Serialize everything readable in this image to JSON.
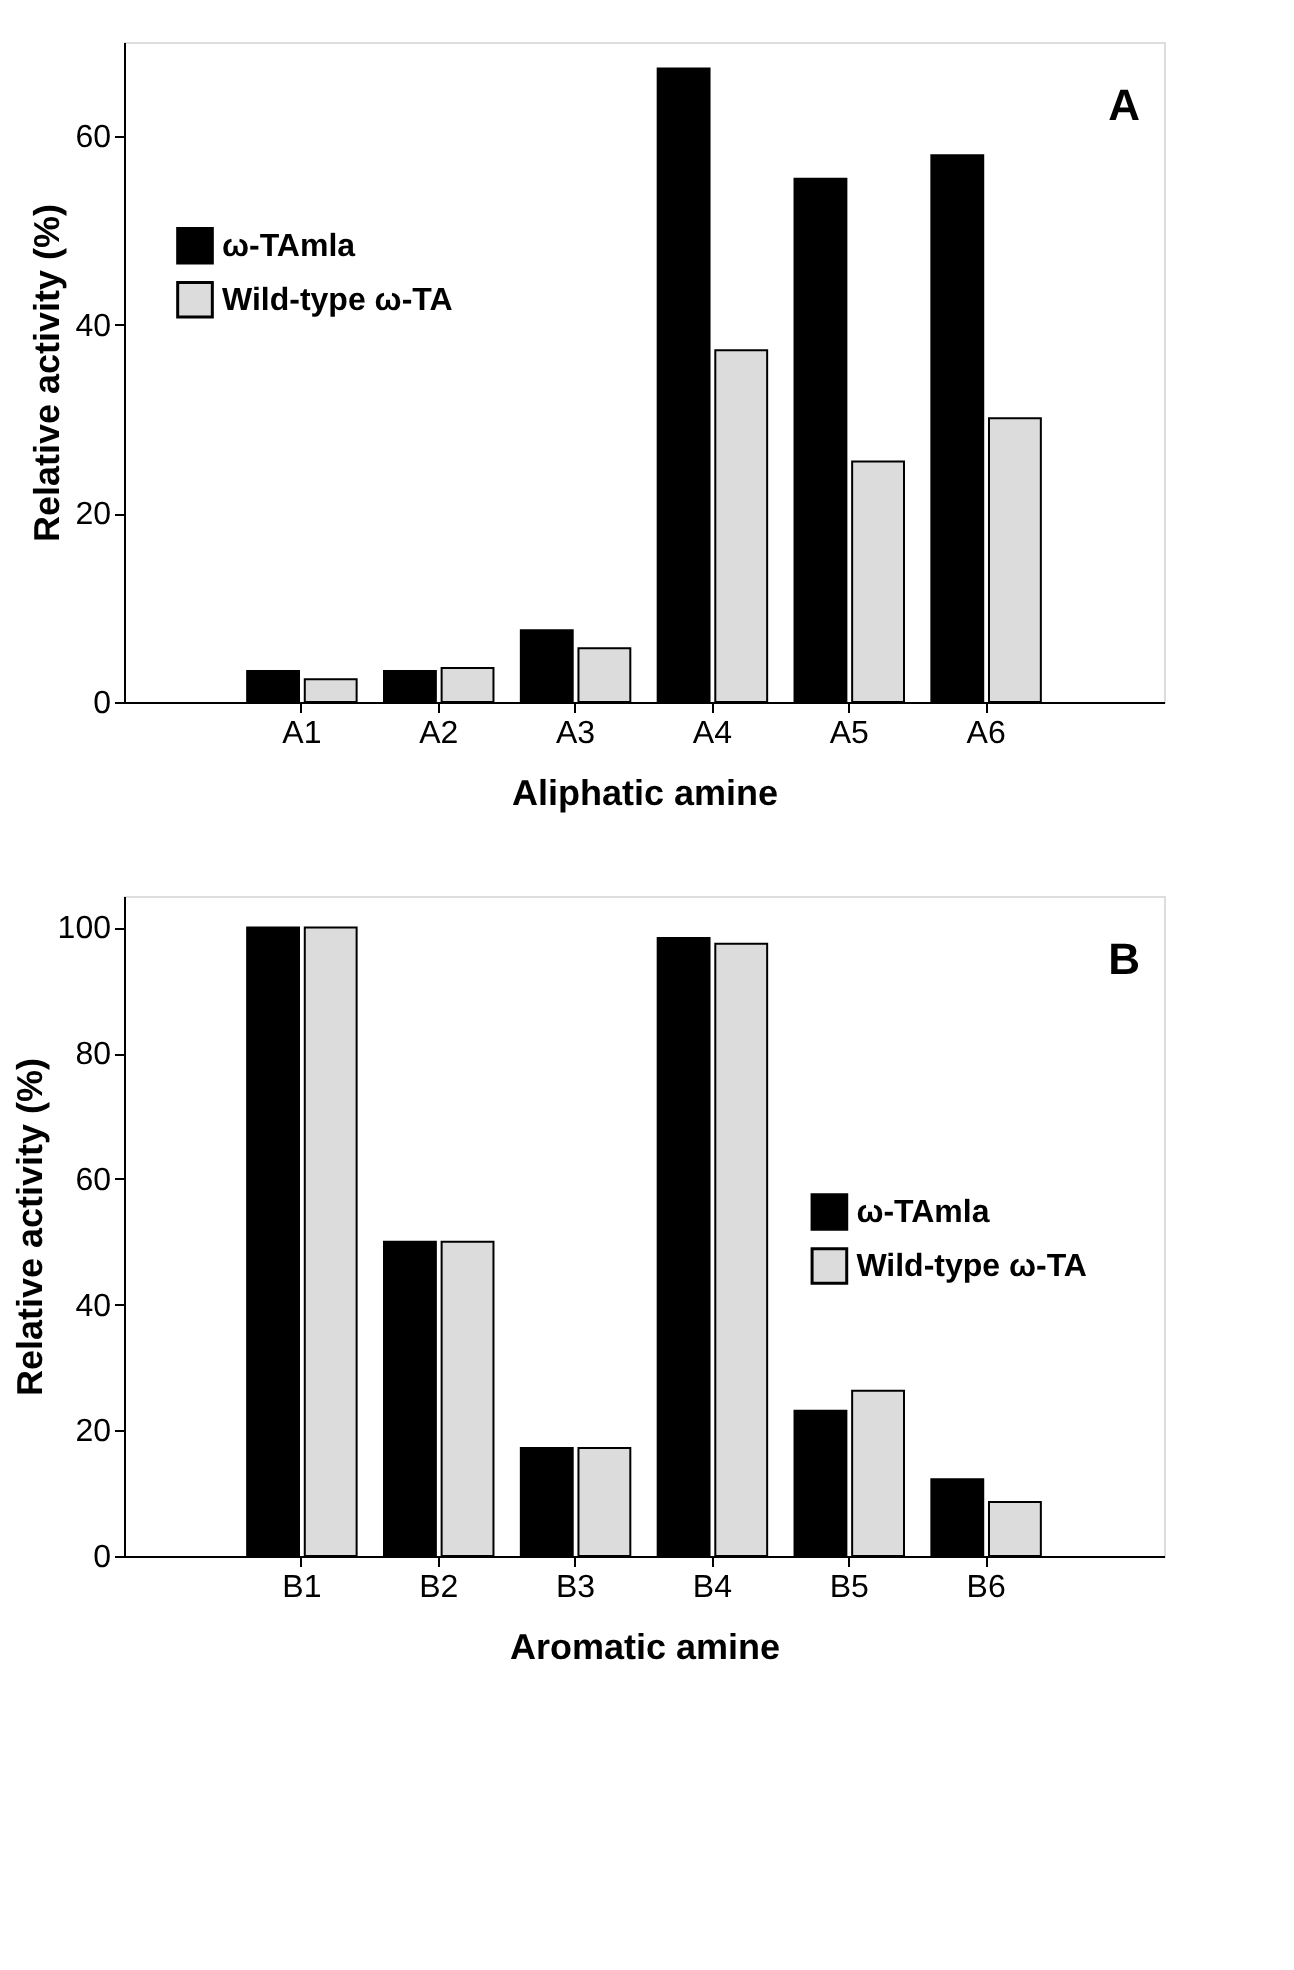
{
  "chart_data": [
    {
      "type": "bar",
      "categories": [
        "A1",
        "A2",
        "A3",
        "A4",
        "A5",
        "A6"
      ],
      "xlabel": "Aliphatic amine",
      "ylabel": "Relative activity (%)",
      "series": [
        {
          "name": "ω-TAmla",
          "color": "#000000",
          "values": [
            3.3,
            3.3,
            7.6,
            67.2,
            55.5,
            58.0
          ]
        },
        {
          "name": "Wild-type ω-TA",
          "color": "#dcdcdc",
          "values": [
            2.4,
            3.6,
            5.7,
            37.3,
            25.5,
            30.1
          ]
        }
      ],
      "ylim": [
        0,
        70
      ],
      "yticks": [
        0,
        20,
        40,
        60
      ],
      "grid": false,
      "legend": "top left",
      "annotations": [
        "A"
      ]
    },
    {
      "type": "bar",
      "categories": [
        "B1",
        "B2",
        "B3",
        "B4",
        "B5",
        "B6"
      ],
      "xlabel": "Aromatic amine",
      "ylabel": "Relative activity (%)",
      "series": [
        {
          "name": "ω-TAmla",
          "color": "#000000",
          "values": [
            100,
            50,
            17.2,
            98.3,
            23.1,
            12.2
          ]
        },
        {
          "name": "Wild-type ω-TA",
          "color": "#dcdcdc",
          "values": [
            100,
            50,
            17.2,
            97.4,
            26.3,
            8.6
          ]
        }
      ],
      "ylim": [
        0,
        105
      ],
      "yticks": [
        0,
        20,
        40,
        60,
        80,
        100
      ],
      "grid": false,
      "legend": "right",
      "annotations": [
        "B"
      ]
    }
  ]
}
